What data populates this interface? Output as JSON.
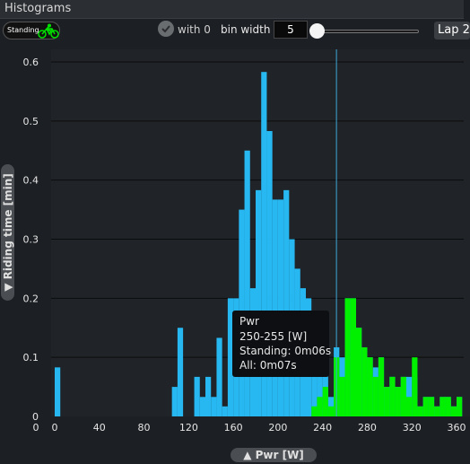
{
  "window": {
    "title": "Histograms"
  },
  "toolbar": {
    "series_badge": "Standing",
    "with_zero_label": "with 0",
    "bin_width_label": "bin width :",
    "bin_width_value": "5",
    "bin_width_slider_fraction": 0.0,
    "lap_button": "Lap 2"
  },
  "tooltip": {
    "title": "Pwr",
    "range": "250-255 [W]",
    "standing": "Standing: 0m06s",
    "all": "All: 0m07s"
  },
  "colors": {
    "all": "#27b8f2",
    "standing": "#00f000",
    "cursor": "#3fa9d8",
    "plot_bg": "#202327"
  },
  "chart_data": {
    "type": "bar",
    "xlabel": "▲ Pwr [W]",
    "ylabel": "▼ Riding time [min]",
    "xlim": [
      0,
      365
    ],
    "ylim": [
      0,
      0.6
    ],
    "x_ticks": [
      0,
      40,
      80,
      120,
      160,
      200,
      240,
      280,
      320,
      360
    ],
    "y_ticks": [
      0,
      0.1,
      0.2,
      0.3,
      0.4,
      0.5,
      0.6
    ],
    "y_tick_labels": [
      "0",
      "0.1",
      "0.2",
      "0.3",
      "0.4",
      "0.5",
      "0.6"
    ],
    "cursor_x": 252,
    "bin_width": 5,
    "series": [
      {
        "name": "All",
        "x": [
          0,
          105,
          110,
          125,
          130,
          135,
          140,
          145,
          150,
          155,
          160,
          165,
          170,
          175,
          180,
          185,
          190,
          195,
          200,
          205,
          210,
          215,
          220,
          225,
          230,
          235,
          240,
          245,
          250,
          255,
          260,
          265,
          270,
          275,
          280,
          285,
          290,
          295,
          300,
          305,
          310,
          315,
          320,
          325,
          330,
          335,
          340,
          345,
          350,
          355,
          360
        ],
        "values": [
          0.083,
          0.05,
          0.15,
          0.067,
          0.033,
          0.067,
          0.033,
          0.133,
          0.017,
          0.2,
          0.2,
          0.35,
          0.45,
          0.217,
          0.383,
          0.583,
          0.483,
          0.367,
          0.367,
          0.383,
          0.3,
          0.25,
          0.217,
          0.2,
          0.133,
          0.067,
          0.1,
          0.033,
          0.117,
          0.1,
          0.2,
          0.2,
          0.15,
          0.117,
          0.1,
          0.083,
          0.1,
          0.05,
          0.067,
          0.05,
          0.067,
          0.067,
          0.067,
          0.017,
          0.033,
          0.033,
          0.017,
          0.033,
          0.033,
          0.017,
          0.033
        ]
      },
      {
        "name": "Standing",
        "x": [
          230,
          235,
          240,
          245,
          250,
          255,
          260,
          265,
          270,
          275,
          280,
          285,
          290,
          295,
          300,
          305,
          310,
          315,
          320,
          325,
          330,
          335,
          340,
          345,
          350,
          355,
          360
        ],
        "values": [
          0.017,
          0.033,
          0.05,
          0.017,
          0.1,
          0.067,
          0.2,
          0.2,
          0.15,
          0.117,
          0.1,
          0.067,
          0.1,
          0.05,
          0.067,
          0.05,
          0.067,
          0.033,
          0.1,
          0.017,
          0.033,
          0.033,
          0.017,
          0.033,
          0.033,
          0.017,
          0.033
        ]
      }
    ]
  }
}
